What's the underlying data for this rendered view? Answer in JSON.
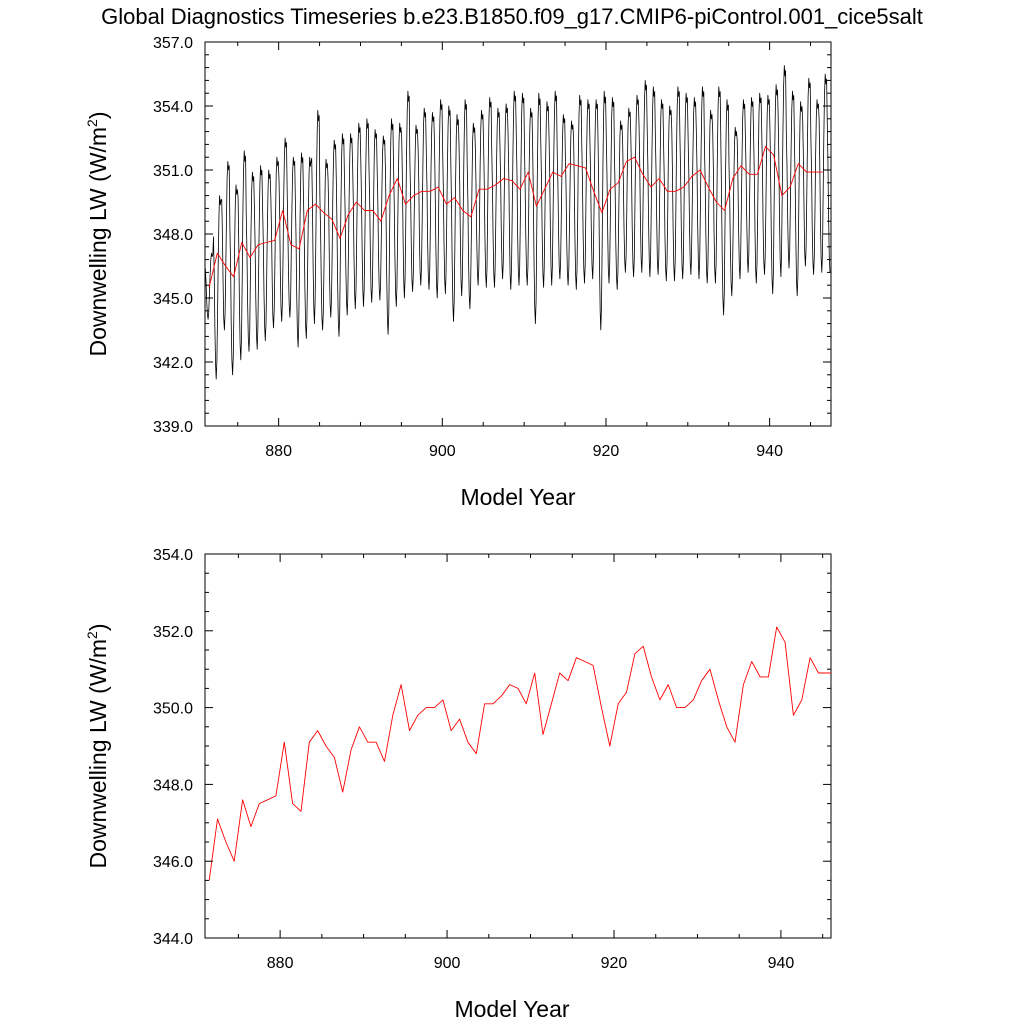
{
  "title": "Global Diagnostics Timeseries b.e23.B1850.f09_g17.CMIP6-piControl.001_cice5salt",
  "colors": {
    "monthly": "#000000",
    "annual": "#ff0000"
  },
  "chart_data": [
    {
      "type": "line",
      "panel": "top",
      "ylabel": "Downwelling LW (W/m",
      "ylabel_sup": "2",
      "ylabel_close": ")",
      "xlabel": "Model Year",
      "xlim": [
        871,
        947.5
      ],
      "ylim": [
        339.0,
        357.0
      ],
      "yticks": [
        339.0,
        342.0,
        345.0,
        348.0,
        351.0,
        354.0,
        357.0
      ],
      "ytick_labels": [
        "339.0",
        "342.0",
        "345.0",
        "348.0",
        "351.0",
        "354.0",
        "357.0"
      ],
      "xticks": [
        880,
        900,
        920,
        940
      ],
      "xtick_labels": [
        "880",
        "900",
        "920",
        "940"
      ],
      "series": [
        {
          "name": "monthly",
          "style": "seasonal-cycle",
          "year_start": 871.04,
          "months": 917,
          "annual_max": [
            347.1,
            349.8,
            351.4,
            350.3,
            351.9,
            350.9,
            351.2,
            351.0,
            351.6,
            352.5,
            351.6,
            351.8,
            351.6,
            353.8,
            351.5,
            352.4,
            352.7,
            352.7,
            353.2,
            353.4,
            352.9,
            352.6,
            353.4,
            353.2,
            354.7,
            353.1,
            353.9,
            353.7,
            354.3,
            354.0,
            353.6,
            354.3,
            353.2,
            353.8,
            354.4,
            353.9,
            354.1,
            354.7,
            354.6,
            353.9,
            354.6,
            354.2,
            354.7,
            353.6,
            353.3,
            354.5,
            354.3,
            354.3,
            354.7,
            354.4,
            353.3,
            353.9,
            354.5,
            355.2,
            354.9,
            354.3,
            354.0,
            354.9,
            354.6,
            354.4,
            354.9,
            353.8,
            354.9,
            354.3,
            353.0,
            354.3,
            354.4,
            354.6,
            354.5,
            355.0,
            355.9,
            354.7,
            354.2,
            355.3,
            354.3,
            355.5,
            355.5
          ],
          "annual_min": [
            344.0,
            341.2,
            343.5,
            341.4,
            342.1,
            342.5,
            342.6,
            343.0,
            343.6,
            343.9,
            344.1,
            342.7,
            343.1,
            343.8,
            343.5,
            344.1,
            343.2,
            344.2,
            344.5,
            344.6,
            344.8,
            344.9,
            343.3,
            344.6,
            345.0,
            345.3,
            345.6,
            345.4,
            345.0,
            345.2,
            343.9,
            345.1,
            344.5,
            345.6,
            345.5,
            345.5,
            345.9,
            345.4,
            345.6,
            345.6,
            343.8,
            345.5,
            345.6,
            345.9,
            345.6,
            345.4,
            345.7,
            345.9,
            343.5,
            345.7,
            345.4,
            346.2,
            346.0,
            346.2,
            346.0,
            346.1,
            345.8,
            345.8,
            345.9,
            346.1,
            345.9,
            345.7,
            345.7,
            344.2,
            345.1,
            345.9,
            346.2,
            345.7,
            346.1,
            345.2,
            346.0,
            346.4,
            345.1,
            346.5,
            346.1,
            346.2,
            346.2
          ]
        },
        {
          "name": "annual",
          "x": [
            871.5,
            872.5,
            873.5,
            874.5,
            875.5,
            876.5,
            877.5,
            878.5,
            879.5,
            880.5,
            881.5,
            882.5,
            883.5,
            884.5,
            885.5,
            886.5,
            887.5,
            888.5,
            889.5,
            890.5,
            891.5,
            892.5,
            893.5,
            894.5,
            895.5,
            896.5,
            897.5,
            898.5,
            899.5,
            900.5,
            901.5,
            902.5,
            903.5,
            904.5,
            905.5,
            906.5,
            907.5,
            908.5,
            909.5,
            910.5,
            911.5,
            912.5,
            913.5,
            914.5,
            915.5,
            916.5,
            917.5,
            918.5,
            919.5,
            920.5,
            921.5,
            922.5,
            923.5,
            924.5,
            925.5,
            926.5,
            927.5,
            928.5,
            929.5,
            930.5,
            931.5,
            932.5,
            933.5,
            934.5,
            935.5,
            936.5,
            937.5,
            938.5,
            939.5,
            940.5,
            941.5,
            942.5,
            943.5,
            944.5,
            945.5,
            946.5
          ],
          "values": [
            345.5,
            347.1,
            346.5,
            346.0,
            347.6,
            346.9,
            347.5,
            347.6,
            347.7,
            349.1,
            347.5,
            347.3,
            349.1,
            349.4,
            349.0,
            348.7,
            347.8,
            348.9,
            349.5,
            349.1,
            349.1,
            348.6,
            349.8,
            350.6,
            349.4,
            349.8,
            350.0,
            350.0,
            350.2,
            349.4,
            349.7,
            349.1,
            348.8,
            350.1,
            350.1,
            350.3,
            350.6,
            350.5,
            350.1,
            350.9,
            349.3,
            350.1,
            350.9,
            350.7,
            351.3,
            351.2,
            351.1,
            350.0,
            349.0,
            350.1,
            350.4,
            351.4,
            351.6,
            350.8,
            350.2,
            350.6,
            350.0,
            350.0,
            350.2,
            350.7,
            351.0,
            350.2,
            349.5,
            349.1,
            350.6,
            351.2,
            350.8,
            350.8,
            352.1,
            351.7,
            349.8,
            350.2,
            351.3,
            350.9,
            350.9,
            350.9
          ]
        }
      ]
    },
    {
      "type": "line",
      "panel": "bottom",
      "ylabel": "Downwelling LW (W/m",
      "ylabel_sup": "2",
      "ylabel_close": ")",
      "xlabel": "Model Year",
      "xlim": [
        871,
        946
      ],
      "ylim": [
        344.0,
        354.0
      ],
      "yticks": [
        344.0,
        346.0,
        348.0,
        350.0,
        352.0,
        354.0
      ],
      "ytick_labels": [
        "344.0",
        "346.0",
        "348.0",
        "350.0",
        "352.0",
        "354.0"
      ],
      "xticks": [
        880,
        900,
        920,
        940
      ],
      "xtick_labels": [
        "880",
        "900",
        "920",
        "940"
      ],
      "series": [
        {
          "name": "annual",
          "x": [
            871.5,
            872.5,
            873.5,
            874.5,
            875.5,
            876.5,
            877.5,
            878.5,
            879.5,
            880.5,
            881.5,
            882.5,
            883.5,
            884.5,
            885.5,
            886.5,
            887.5,
            888.5,
            889.5,
            890.5,
            891.5,
            892.5,
            893.5,
            894.5,
            895.5,
            896.5,
            897.5,
            898.5,
            899.5,
            900.5,
            901.5,
            902.5,
            903.5,
            904.5,
            905.5,
            906.5,
            907.5,
            908.5,
            909.5,
            910.5,
            911.5,
            912.5,
            913.5,
            914.5,
            915.5,
            916.5,
            917.5,
            918.5,
            919.5,
            920.5,
            921.5,
            922.5,
            923.5,
            924.5,
            925.5,
            926.5,
            927.5,
            928.5,
            929.5,
            930.5,
            931.5,
            932.5,
            933.5,
            934.5,
            935.5,
            936.5,
            937.5,
            938.5,
            939.5,
            940.5,
            941.5,
            942.5,
            943.5,
            944.5,
            945.5,
            946.5
          ],
          "values": [
            345.5,
            347.1,
            346.5,
            346.0,
            347.6,
            346.9,
            347.5,
            347.6,
            347.7,
            349.1,
            347.5,
            347.3,
            349.1,
            349.4,
            349.0,
            348.7,
            347.8,
            348.9,
            349.5,
            349.1,
            349.1,
            348.6,
            349.8,
            350.6,
            349.4,
            349.8,
            350.0,
            350.0,
            350.2,
            349.4,
            349.7,
            349.1,
            348.8,
            350.1,
            350.1,
            350.3,
            350.6,
            350.5,
            350.1,
            350.9,
            349.3,
            350.1,
            350.9,
            350.7,
            351.3,
            351.2,
            351.1,
            350.0,
            349.0,
            350.1,
            350.4,
            351.4,
            351.6,
            350.8,
            350.2,
            350.6,
            350.0,
            350.0,
            350.2,
            350.7,
            351.0,
            350.2,
            349.5,
            349.1,
            350.6,
            351.2,
            350.8,
            350.8,
            352.1,
            351.7,
            349.8,
            350.2,
            351.3,
            350.9,
            350.9,
            350.9
          ]
        }
      ]
    }
  ]
}
